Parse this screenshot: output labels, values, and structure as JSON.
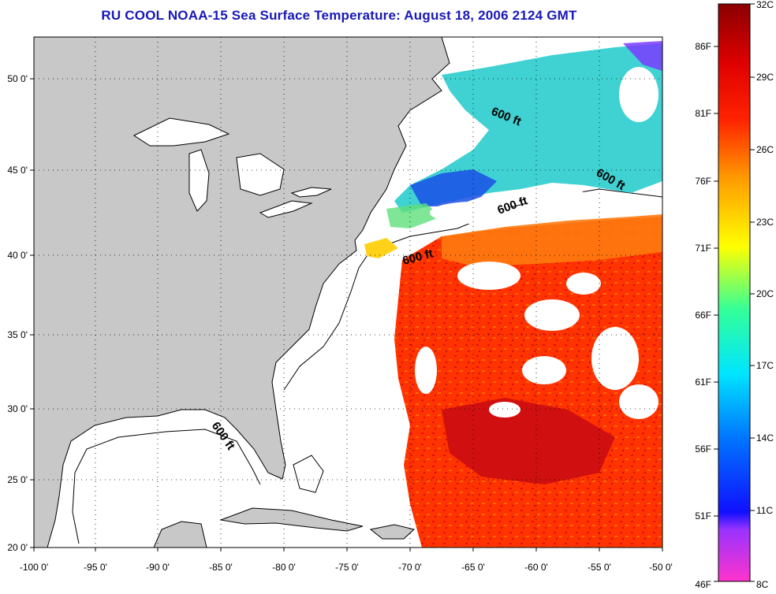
{
  "title": "RU COOL  NOAA-15  Sea Surface Temperature:  August 18, 2006 2124 GMT",
  "map": {
    "lon_labels": [
      "-100 0'",
      "-95 0'",
      "-90 0'",
      "-85 0'",
      "-80 0'",
      "-75 0'",
      "-70 0'",
      "-65 0'",
      "-60 0'",
      "-55 0'",
      "-50 0'"
    ],
    "lat_labels": [
      "20 0'",
      "25 0'",
      "30 0'",
      "35 0'",
      "40 0'",
      "45 0'",
      "50 0'"
    ],
    "isobath_labels": [
      "600 ft",
      "600 ft",
      "600 ft",
      "600 ft",
      "600 ft"
    ],
    "land_color": "#c8c8c8",
    "cloud_color": "#ffffff"
  },
  "colorbar": {
    "fahrenheit_labels": [
      "86F",
      "81F",
      "76F",
      "71F",
      "66F",
      "61F",
      "56F",
      "51F",
      "46F"
    ],
    "celsius_labels": [
      "32C",
      "29C",
      "26C",
      "23C",
      "20C",
      "17C",
      "14C",
      "11C",
      "8C"
    ],
    "stops": [
      "#ff33cc",
      "#9933ff",
      "#0000ff",
      "#0077ff",
      "#00e5ff",
      "#33ff99",
      "#ffff00",
      "#ff9900",
      "#ff2200",
      "#cc0000",
      "#8b0000"
    ]
  }
}
